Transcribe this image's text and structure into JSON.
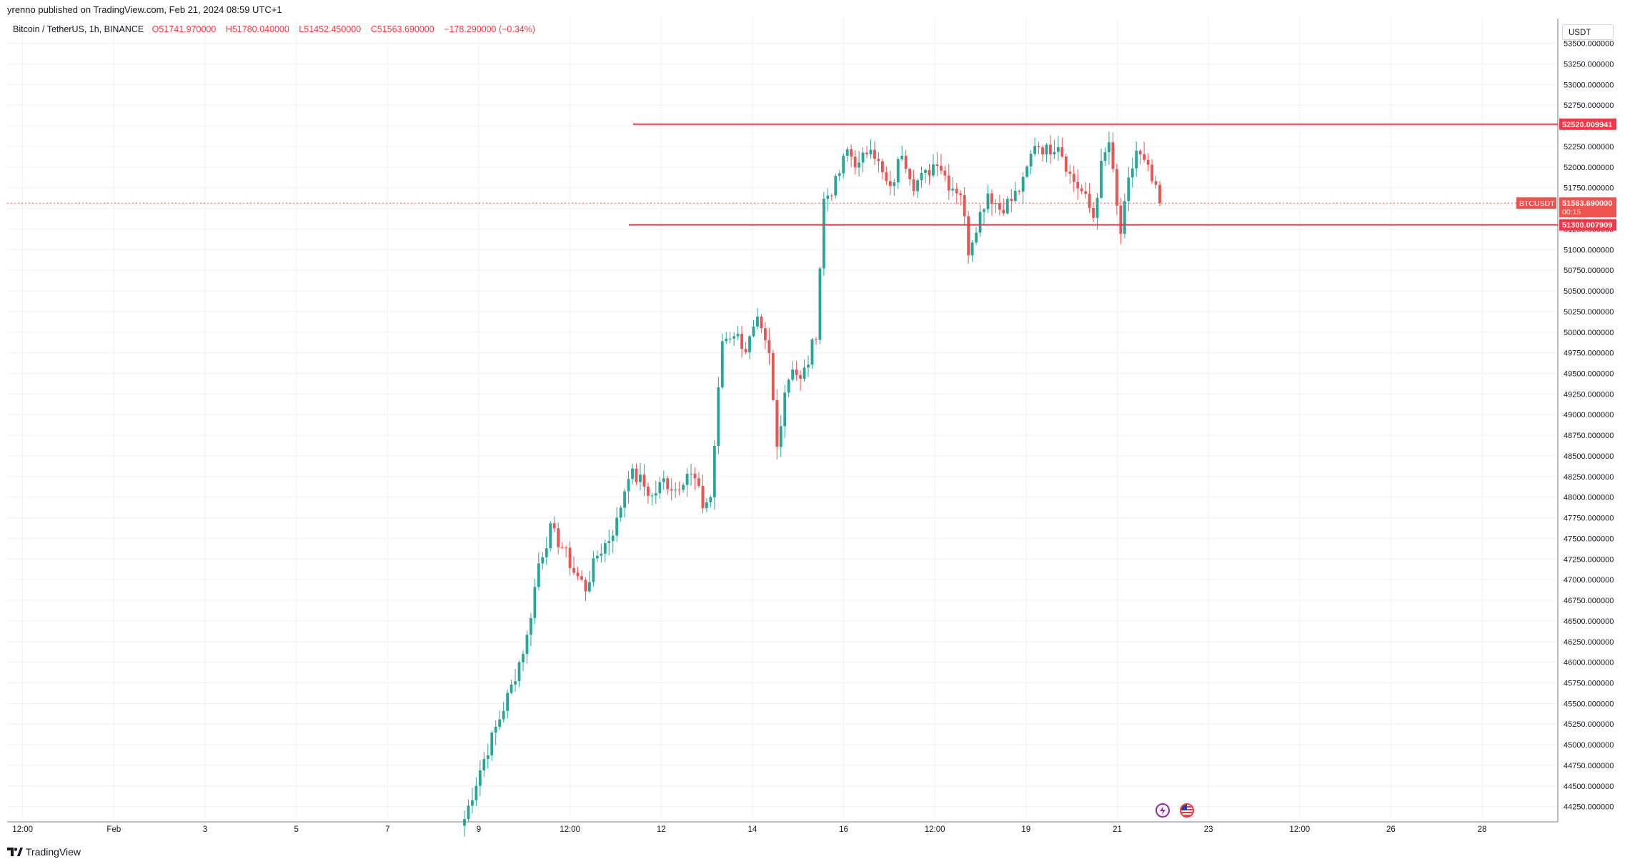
{
  "header": {
    "published": "yrenno published on TradingView.com, Feb 21, 2024 08:59 UTC+1"
  },
  "legend": {
    "symbol": "Bitcoin / TetherUS, 1h, BINANCE",
    "open": "O51741.970000",
    "high": "H51780.040000",
    "low": "L51452.450000",
    "close": "C51563.690000",
    "change": "−178.290000 (−0.34%)"
  },
  "currency_button": "USDT",
  "footer": {
    "brand": "TradingView"
  },
  "icons": {
    "event1": "flash-icon",
    "event2": "us-flag-icon",
    "brand": "tradingview-logo-icon"
  },
  "colors": {
    "up": "#26a69a",
    "down": "#ef5350",
    "line": "#f23645",
    "grid": "#eef1f6"
  },
  "chart_data": {
    "type": "candlestick",
    "symbol": "BTCUSDT",
    "interval": "1h",
    "exchange": "BINANCE",
    "ylim": [
      44100,
      53800
    ],
    "yticks": [
      "44250.000000",
      "44500.000000",
      "44750.000000",
      "45000.000000",
      "45250.000000",
      "45500.000000",
      "45750.000000",
      "46000.000000",
      "46250.000000",
      "46500.000000",
      "46750.000000",
      "47000.000000",
      "47250.000000",
      "47500.000000",
      "47750.000000",
      "48000.000000",
      "48250.000000",
      "48500.000000",
      "48750.000000",
      "49000.000000",
      "49250.000000",
      "49500.000000",
      "49750.000000",
      "50000.000000",
      "50250.000000",
      "50500.000000",
      "50750.000000",
      "51000.000000",
      "51250.000000",
      "51500.000000",
      "51750.000000",
      "52000.000000",
      "52250.000000",
      "52500.000000",
      "52750.000000",
      "53000.000000",
      "53250.000000",
      "53500.000000"
    ],
    "xticks": [
      "12:00",
      "Feb",
      "3",
      "5",
      "7",
      "9",
      "12:00",
      "12",
      "14",
      "16",
      "12:00",
      "19",
      "21",
      "23",
      "12:00",
      "26",
      "28"
    ],
    "price_label": {
      "symbol": "BTCUSDT",
      "price": "51563.690000",
      "countdown": "00:15",
      "value": 51563.69
    },
    "horizontal_lines": [
      {
        "value": 52520.009941,
        "label": "52520.009941"
      },
      {
        "value": 51300.007909,
        "label": "51300.007909"
      }
    ],
    "close_path": [
      [
        0,
        44100
      ],
      [
        4,
        44700
      ],
      [
        8,
        45200
      ],
      [
        12,
        45700
      ],
      [
        16,
        46300
      ],
      [
        19,
        47200
      ],
      [
        22,
        47600
      ],
      [
        25,
        47400
      ],
      [
        28,
        47100
      ],
      [
        31,
        46900
      ],
      [
        34,
        47300
      ],
      [
        37,
        47500
      ],
      [
        39,
        47700
      ],
      [
        42,
        48300
      ],
      [
        45,
        48200
      ],
      [
        48,
        48000
      ],
      [
        51,
        48200
      ],
      [
        54,
        48100
      ],
      [
        57,
        48300
      ],
      [
        59,
        48200
      ],
      [
        61,
        47900
      ],
      [
        63,
        48000
      ],
      [
        66,
        49900
      ],
      [
        69,
        50000
      ],
      [
        72,
        49800
      ],
      [
        75,
        50100
      ],
      [
        78,
        49700
      ],
      [
        80,
        48600
      ],
      [
        82,
        49300
      ],
      [
        84,
        49600
      ],
      [
        86,
        49400
      ],
      [
        88,
        49650
      ],
      [
        90,
        50000
      ],
      [
        92,
        51600
      ],
      [
        95,
        51800
      ],
      [
        98,
        52200
      ],
      [
        101,
        52000
      ],
      [
        104,
        52300
      ],
      [
        107,
        51900
      ],
      [
        109,
        51700
      ],
      [
        112,
        52200
      ],
      [
        115,
        51800
      ],
      [
        118,
        51900
      ],
      [
        121,
        52100
      ],
      [
        124,
        51800
      ],
      [
        127,
        51700
      ],
      [
        129,
        51000
      ],
      [
        131,
        51300
      ],
      [
        134,
        51700
      ],
      [
        137,
        51500
      ],
      [
        140,
        51600
      ],
      [
        143,
        51800
      ],
      [
        146,
        52300
      ],
      [
        149,
        52200
      ],
      [
        152,
        52300
      ],
      [
        155,
        51900
      ],
      [
        158,
        51700
      ],
      [
        161,
        51400
      ],
      [
        163,
        52000
      ],
      [
        165,
        52300
      ],
      [
        167,
        51500
      ],
      [
        168,
        51200
      ],
      [
        170,
        51800
      ],
      [
        172,
        52200
      ],
      [
        175,
        51950
      ],
      [
        178,
        51563.69
      ]
    ]
  }
}
